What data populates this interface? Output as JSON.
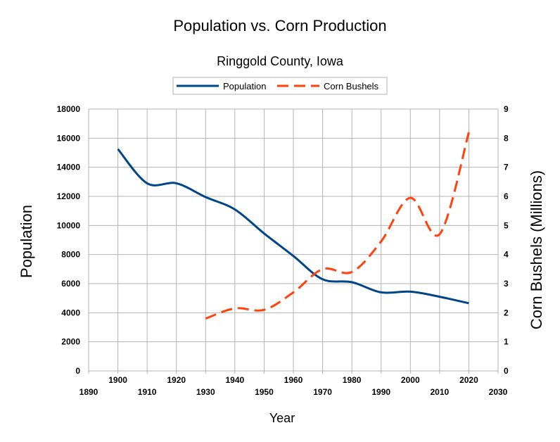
{
  "chart_data": {
    "type": "line",
    "title": "Population vs. Corn Production",
    "subtitle": "Ringgold County, Iowa",
    "xlabel": "Year",
    "ylabel": "Population",
    "y2label": "Corn Bushels (Millions)",
    "xlim": [
      1890,
      2030
    ],
    "ylim": [
      0,
      18000
    ],
    "y2lim": [
      0,
      9
    ],
    "x_ticks_upper": [
      1900,
      1920,
      1940,
      1960,
      1980,
      2000,
      2020
    ],
    "x_ticks_lower": [
      1890,
      1910,
      1930,
      1950,
      1970,
      1990,
      2010,
      2030
    ],
    "y_ticks": [
      0,
      2000,
      4000,
      6000,
      8000,
      10000,
      12000,
      14000,
      16000,
      18000
    ],
    "y2_ticks": [
      0,
      1,
      2,
      3,
      4,
      5,
      6,
      7,
      8,
      9
    ],
    "grid": true,
    "legend_position": "top",
    "series": [
      {
        "name": "Population",
        "axis": "left",
        "color": "#004586",
        "style": "solid",
        "x": [
          1900,
          1910,
          1920,
          1930,
          1940,
          1950,
          1960,
          1970,
          1980,
          1990,
          2000,
          2010,
          2020
        ],
        "y": [
          15250,
          12900,
          12900,
          11950,
          11100,
          9450,
          7900,
          6300,
          6100,
          5400,
          5450,
          5100,
          4650
        ]
      },
      {
        "name": "Corn Bushels",
        "axis": "right",
        "color": "#ff420e",
        "style": "dashed",
        "x": [
          1930,
          1940,
          1950,
          1960,
          1970,
          1980,
          1990,
          2000,
          2010,
          2020
        ],
        "y": [
          1.8,
          2.15,
          2.1,
          2.7,
          3.5,
          3.4,
          4.45,
          5.95,
          4.7,
          8.2
        ]
      }
    ]
  }
}
